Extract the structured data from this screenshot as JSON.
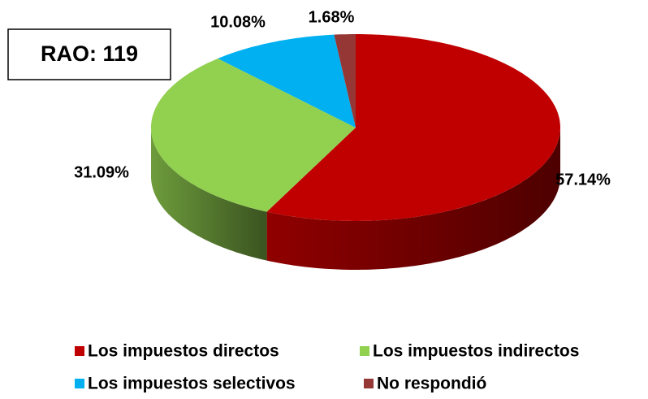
{
  "chart_data": {
    "type": "pie3d",
    "annotation": "RAO: 119",
    "categories": [
      "Los impuestos directos",
      "Los impuestos indirectos",
      "Los impuestos selectivos",
      "No respondió"
    ],
    "values": [
      57.14,
      31.09,
      10.08,
      1.68
    ],
    "value_labels": [
      "57.14%",
      "31.09%",
      "10.08%",
      "1.68%"
    ],
    "colors": [
      "#c00000",
      "#92d050",
      "#00b0f0",
      "#953735"
    ],
    "legend": "bottom"
  }
}
